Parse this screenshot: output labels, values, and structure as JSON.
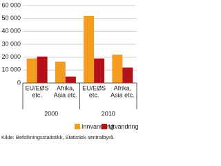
{
  "chart_data": {
    "type": "bar",
    "groups": [
      "2000",
      "2010"
    ],
    "categories": [
      [
        "EU/EØS",
        "etc."
      ],
      [
        "Afrika,",
        "Asia etc."
      ],
      [
        "EU/EØS",
        "etc."
      ],
      [
        "Afrika,",
        "Asia etc."
      ]
    ],
    "series": [
      {
        "name": "Innvandring",
        "color": "#f39c1f",
        "values": [
          19000,
          16500,
          52000,
          22000
        ]
      },
      {
        "name": "Utvandring",
        "color": "#b4121b",
        "values": [
          20500,
          5000,
          19000,
          12000
        ]
      }
    ],
    "ylim": [
      0,
      60000
    ],
    "yticks": [
      0,
      {
        "value": 10000,
        "label": "10 000"
      },
      {
        "value": 20000,
        "label": "20 000"
      },
      {
        "value": 30000,
        "label": "30 000"
      },
      {
        "value": 40000,
        "label": "40 000"
      },
      {
        "value": 50000,
        "label": "50 000"
      },
      {
        "value": 60000,
        "label": "60 000"
      }
    ],
    "grid": true,
    "legend": "bottom",
    "source": "Kilde: Befolkningsstatistikk, Statistisk sentralbyrå."
  }
}
